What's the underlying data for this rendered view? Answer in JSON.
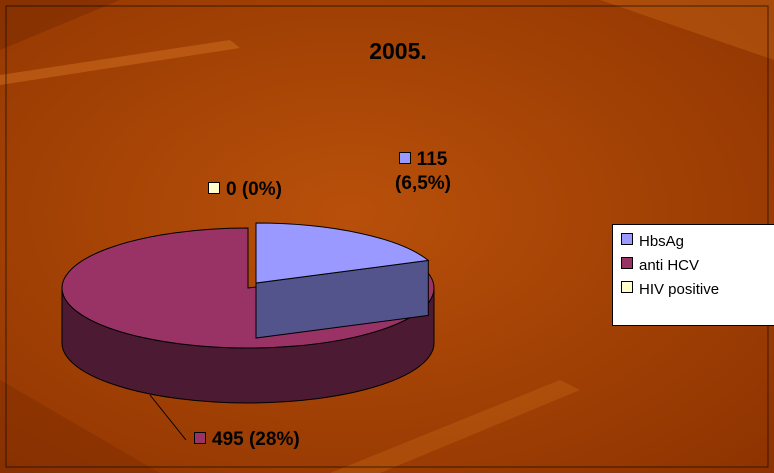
{
  "chart_data": {
    "type": "pie3d",
    "title": "2005.",
    "categories": [
      "HbsAg",
      "anti HCV",
      "HIV positive"
    ],
    "values": [
      115,
      495,
      0
    ],
    "value_labels": [
      "115 (6,5%)",
      "495 (28%)",
      "0 (0%)"
    ],
    "colors": [
      "#9999ff",
      "#993366",
      "#ffffcc"
    ],
    "legend": "right"
  }
}
